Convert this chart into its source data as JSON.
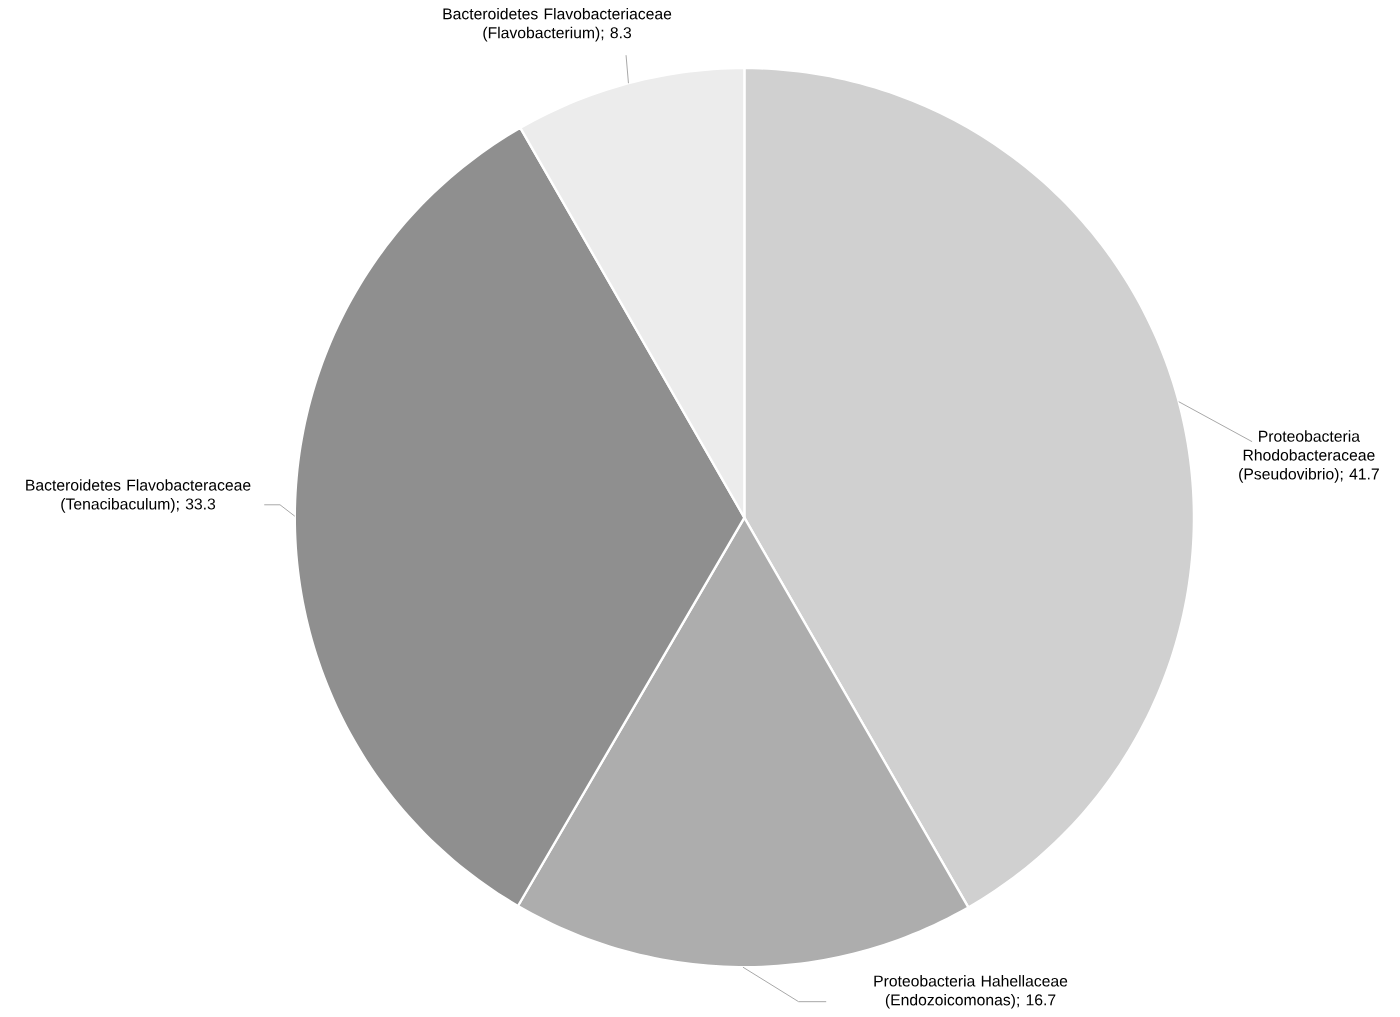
{
  "chart_data": {
    "type": "pie",
    "categories": [
      "Proteobacteria Rhodobacteraceae (Pseudovibrio)",
      "Proteobacteria Hahellaceae (Endozoicomonas)",
      "Bacteroidetes Flavobacteraceae (Tenacibaculum)",
      "Bacteroidetes Flavobacteriaceae (Flavobacterium)"
    ],
    "values": [
      41.7,
      16.7,
      33.3,
      8.3
    ],
    "colors": [
      "#d0d0d0",
      "#adadad",
      "#8f8f8f",
      "#ececec"
    ],
    "value_labels": [
      "; 41.7",
      "; 16.7",
      "; 33.3",
      "; 8.3"
    ]
  }
}
